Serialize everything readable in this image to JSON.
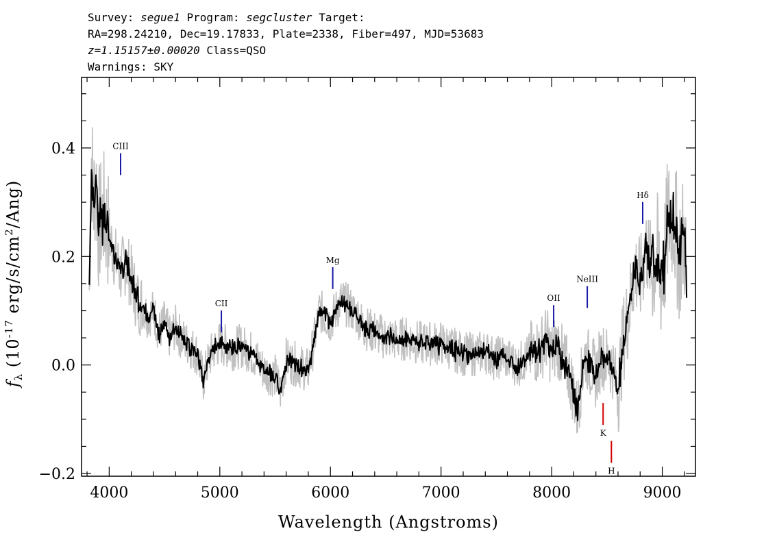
{
  "header": {
    "line1": {
      "survey_label": "Survey:",
      "survey": "segue1",
      "program_label": "Program:",
      "program": "segcluster",
      "target_label": "Target:"
    },
    "line2": "RA=298.24210, Dec=19.17833, Plate=2338, Fiber=497, MJD=53683",
    "line3": {
      "redshift": "z=1.15157±0.00020",
      "class": "Class=QSO"
    },
    "line4": "Warnings: SKY"
  },
  "chart_data": {
    "type": "line",
    "title": "",
    "xlabel": "Wavelength (Angstroms)",
    "ylabel": "f_λ (10^-17 erg/s/cm^2/Ang)",
    "xlim": [
      3750,
      9300
    ],
    "ylim": [
      -0.205,
      0.53
    ],
    "xticks": [
      4000,
      5000,
      6000,
      7000,
      8000,
      9000
    ],
    "yticks": [
      -0.2,
      0.0,
      0.2,
      0.4
    ],
    "ytick_labels": [
      "−0.2",
      "0.0",
      "0.2",
      "0.4"
    ],
    "grid": false,
    "legend": "none",
    "colors": {
      "flux": "#000000",
      "error_band": "#c0c0c0",
      "emission": "#1a1aa6",
      "absorption": "#d40000"
    },
    "series": [
      {
        "role": "flux",
        "x": [
          3820,
          3840,
          3860,
          3880,
          3900,
          3950,
          4000,
          4050,
          4100,
          4150,
          4200,
          4250,
          4300,
          4350,
          4400,
          4450,
          4500,
          4550,
          4600,
          4650,
          4700,
          4750,
          4800,
          4850,
          4900,
          4950,
          5000,
          5100,
          5200,
          5300,
          5400,
          5500,
          5550,
          5600,
          5700,
          5800,
          5850,
          5900,
          5950,
          6000,
          6050,
          6100,
          6150,
          6200,
          6250,
          6300,
          6400,
          6500,
          6550,
          6600,
          6700,
          6800,
          6900,
          7000,
          7100,
          7200,
          7300,
          7400,
          7500,
          7550,
          7600,
          7700,
          7800,
          7900,
          7950,
          8000,
          8050,
          8100,
          8150,
          8200,
          8230,
          8260,
          8300,
          8350,
          8400,
          8450,
          8500,
          8550,
          8600,
          8650,
          8700,
          8750,
          8800,
          8850,
          8900,
          8950,
          9000,
          9050,
          9100,
          9150,
          9200,
          9220
        ],
        "y": [
          0.14,
          0.38,
          0.3,
          0.35,
          0.25,
          0.28,
          0.24,
          0.2,
          0.17,
          0.19,
          0.16,
          0.12,
          0.11,
          0.09,
          0.1,
          0.06,
          0.08,
          0.05,
          0.07,
          0.05,
          0.04,
          0.03,
          0.02,
          -0.03,
          0.01,
          0.03,
          0.04,
          0.03,
          0.035,
          0.02,
          -0.01,
          -0.02,
          -0.05,
          0.01,
          0.0,
          -0.01,
          0.04,
          0.1,
          0.09,
          0.08,
          0.1,
          0.12,
          0.11,
          0.1,
          0.09,
          0.07,
          0.06,
          0.05,
          0.05,
          0.045,
          0.05,
          0.04,
          0.04,
          0.04,
          0.03,
          0.02,
          0.02,
          0.025,
          0.01,
          0.02,
          0.01,
          0.0,
          0.02,
          0.03,
          0.05,
          0.02,
          0.04,
          0.01,
          -0.01,
          -0.05,
          -0.09,
          -0.04,
          0.02,
          0.0,
          -0.02,
          0.02,
          0.01,
          0.0,
          -0.05,
          0.05,
          0.1,
          0.18,
          0.15,
          0.22,
          0.18,
          0.2,
          0.15,
          0.26,
          0.28,
          0.2,
          0.24,
          0.15
        ]
      }
    ],
    "lines": [
      {
        "label": "CIII",
        "x": 4103,
        "y": 0.35,
        "kind": "emission"
      },
      {
        "label": "CII",
        "x": 5014,
        "y": 0.06,
        "kind": "emission"
      },
      {
        "label": "Mg",
        "x": 6021,
        "y": 0.14,
        "kind": "emission"
      },
      {
        "label": "OII",
        "x": 8018,
        "y": 0.07,
        "kind": "emission"
      },
      {
        "label": "NeIII",
        "x": 8322,
        "y": 0.105,
        "kind": "emission"
      },
      {
        "label": "Hδ",
        "x": 8823,
        "y": 0.26,
        "kind": "emission"
      },
      {
        "label": "K",
        "x": 8465,
        "y": -0.07,
        "kind": "absorption"
      },
      {
        "label": "H",
        "x": 8540,
        "y": -0.14,
        "kind": "absorption"
      }
    ]
  }
}
